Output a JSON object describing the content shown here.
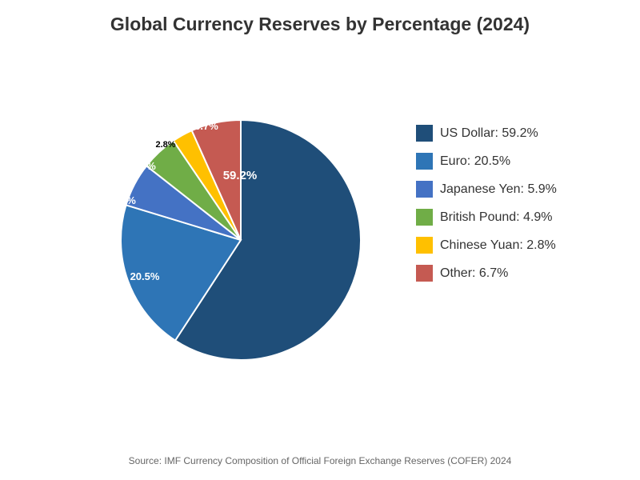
{
  "chart_data": {
    "type": "pie",
    "title": "Global Currency Reserves by Percentage (2024)",
    "categories": [
      "US Dollar",
      "Euro",
      "Japanese Yen",
      "British Pound",
      "Chinese Yuan",
      "Other"
    ],
    "values": [
      59.2,
      20.5,
      5.9,
      4.9,
      2.8,
      6.7
    ],
    "unit": "%",
    "data_labels": [
      "59.2%",
      "20.5%",
      "5.9%",
      "4.9%",
      "2.8%",
      "6.7%"
    ],
    "legend_labels": [
      "US Dollar: 59.2%",
      "Euro: 20.5%",
      "Japanese Yen: 5.9%",
      "British Pound: 4.9%",
      "Chinese Yuan: 2.8%",
      "Other: 6.7%"
    ],
    "colors": [
      "#1f4e79",
      "#2e75b6",
      "#4472c4",
      "#70ad47",
      "#ffc000",
      "#c55a52"
    ],
    "legend_position": "right",
    "source": "Source: IMF Currency Composition of Official Foreign Exchange Reserves (COFER) 2024"
  }
}
